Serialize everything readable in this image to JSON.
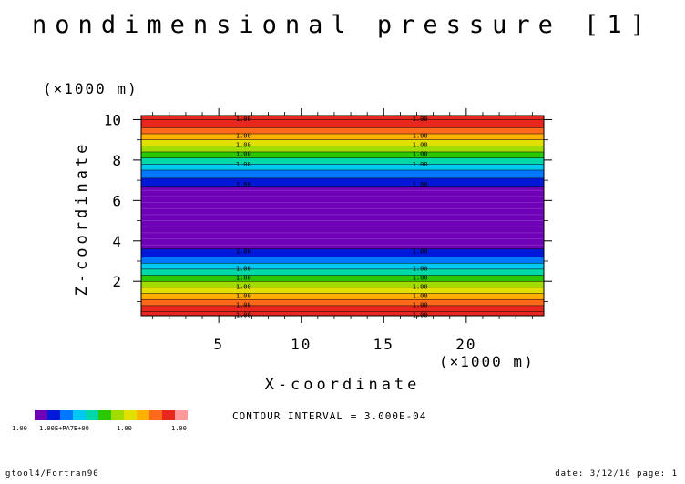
{
  "chart_data": {
    "type": "heatmap",
    "title": "nondimensional pressure [1]",
    "xlabel": "X-coordinate",
    "ylabel": "Z-coordinate",
    "x_unit": "(×1000 m)",
    "y_unit": "(×1000 m)",
    "xlim": [
      0.3,
      24.7
    ],
    "ylim": [
      0.3,
      10.2
    ],
    "x_ticks": [
      5,
      10,
      15,
      20
    ],
    "y_ticks": [
      2,
      4,
      6,
      8,
      10
    ],
    "contour_interval": "CONTOUR INTERVAL = 3.000E-04",
    "bands": [
      {
        "z0": 0.3,
        "z1": 0.8,
        "color": "#e8281e"
      },
      {
        "z0": 0.8,
        "z1": 1.1,
        "color": "#ff6a1a"
      },
      {
        "z0": 1.1,
        "z1": 1.4,
        "color": "#ffb000"
      },
      {
        "z0": 1.4,
        "z1": 1.7,
        "color": "#e2e000"
      },
      {
        "z0": 1.7,
        "z1": 2.0,
        "color": "#a0dc00"
      },
      {
        "z0": 2.0,
        "z1": 2.3,
        "color": "#2ac800"
      },
      {
        "z0": 2.3,
        "z1": 2.6,
        "color": "#00d8a8"
      },
      {
        "z0": 2.6,
        "z1": 2.9,
        "color": "#00c8f0"
      },
      {
        "z0": 2.9,
        "z1": 3.2,
        "color": "#0078ff"
      },
      {
        "z0": 3.2,
        "z1": 3.6,
        "color": "#0018d8"
      },
      {
        "z0": 3.6,
        "z1": 6.7,
        "color": "#7000b8"
      },
      {
        "z0": 6.7,
        "z1": 7.1,
        "color": "#0018d8"
      },
      {
        "z0": 7.1,
        "z1": 7.5,
        "color": "#0078ff"
      },
      {
        "z0": 7.5,
        "z1": 7.8,
        "color": "#00c8f0"
      },
      {
        "z0": 7.8,
        "z1": 8.1,
        "color": "#00d8a8"
      },
      {
        "z0": 8.1,
        "z1": 8.4,
        "color": "#2ac800"
      },
      {
        "z0": 8.4,
        "z1": 8.7,
        "color": "#a0dc00"
      },
      {
        "z0": 8.7,
        "z1": 9.0,
        "color": "#e2e000"
      },
      {
        "z0": 9.0,
        "z1": 9.3,
        "color": "#ffb000"
      },
      {
        "z0": 9.3,
        "z1": 9.6,
        "color": "#ff6a1a"
      },
      {
        "z0": 9.6,
        "z1": 10.2,
        "color": "#e8281e"
      }
    ],
    "contour_lines": [
      0.5,
      0.8,
      1.1,
      1.4,
      1.7,
      2.0,
      2.3,
      2.6,
      2.9,
      3.2,
      3.6,
      6.7,
      7.1,
      7.5,
      7.8,
      8.1,
      8.4,
      8.7,
      9.0,
      9.3,
      9.6,
      10.0
    ],
    "contour_labels": [
      {
        "x": 6.5,
        "z": 0.35,
        "text": "1.00"
      },
      {
        "x": 17.2,
        "z": 0.35,
        "text": "1.00"
      },
      {
        "x": 6.5,
        "z": 0.85,
        "text": "1.00"
      },
      {
        "x": 17.2,
        "z": 0.85,
        "text": "1.00"
      },
      {
        "x": 6.5,
        "z": 1.3,
        "text": "1.00"
      },
      {
        "x": 17.2,
        "z": 1.3,
        "text": "1.00"
      },
      {
        "x": 6.5,
        "z": 1.75,
        "text": "1.00"
      },
      {
        "x": 17.2,
        "z": 1.75,
        "text": "1.00"
      },
      {
        "x": 6.5,
        "z": 2.2,
        "text": "1.00"
      },
      {
        "x": 17.2,
        "z": 2.2,
        "text": "1.00"
      },
      {
        "x": 6.5,
        "z": 2.65,
        "text": "1.00"
      },
      {
        "x": 17.2,
        "z": 2.65,
        "text": "1.00"
      },
      {
        "x": 6.5,
        "z": 3.5,
        "text": "1.00"
      },
      {
        "x": 17.2,
        "z": 3.5,
        "text": "1.00"
      },
      {
        "x": 6.5,
        "z": 6.8,
        "text": "1.00"
      },
      {
        "x": 17.2,
        "z": 6.8,
        "text": "1.00"
      },
      {
        "x": 6.5,
        "z": 7.8,
        "text": "1.00"
      },
      {
        "x": 17.2,
        "z": 7.8,
        "text": "1.00"
      },
      {
        "x": 6.5,
        "z": 8.3,
        "text": "1.00"
      },
      {
        "x": 17.2,
        "z": 8.3,
        "text": "1.00"
      },
      {
        "x": 6.5,
        "z": 8.75,
        "text": "1.00"
      },
      {
        "x": 17.2,
        "z": 8.75,
        "text": "1.00"
      },
      {
        "x": 6.5,
        "z": 9.2,
        "text": "1.00"
      },
      {
        "x": 17.2,
        "z": 9.2,
        "text": "1.00"
      },
      {
        "x": 6.5,
        "z": 10.05,
        "text": "1.00"
      },
      {
        "x": 17.2,
        "z": 10.05,
        "text": "1.00"
      }
    ],
    "legend": {
      "colors": [
        "#7000b8",
        "#0018d8",
        "#0078ff",
        "#00c8f0",
        "#00d8a8",
        "#2ac800",
        "#a0dc00",
        "#e2e000",
        "#ffb000",
        "#ff6a1a",
        "#e8281e",
        "#ff9a9a"
      ],
      "labels": [
        "1.00",
        "1.00",
        "1.00",
        "1.00",
        "1.00"
      ],
      "overlap_label": "1.00E+PA7E+00"
    }
  },
  "footer": {
    "left": "gtool4/Fortran90",
    "right": "date: 3/12/10 page: 1"
  }
}
